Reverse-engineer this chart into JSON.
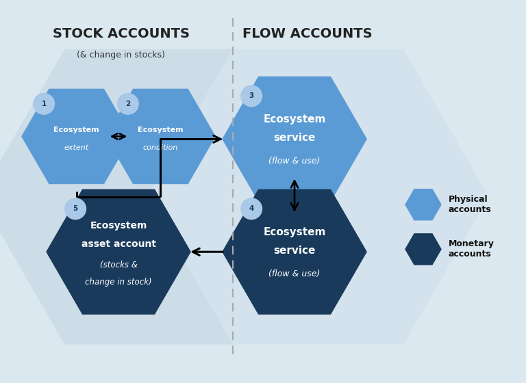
{
  "bg_color": "#dce8ef",
  "physical_color": "#5b9bd5",
  "monetary_color": "#1a3a5c",
  "number_circle_color": "#aac8e8",
  "bg_left_hex": "#c2d9e6",
  "bg_right_hex": "#cfe0ea",
  "bg_outer": "#c8d8e2",
  "title_stock": "STOCK ACCOUNTS",
  "subtitle_stock": "(& change in stocks)",
  "title_flow": "FLOW ACCOUNTS",
  "legend_physical": "Physical\naccounts",
  "legend_monetary": "Monetary\naccounts",
  "figsize": [
    7.68,
    5.6
  ],
  "dpi": 100
}
